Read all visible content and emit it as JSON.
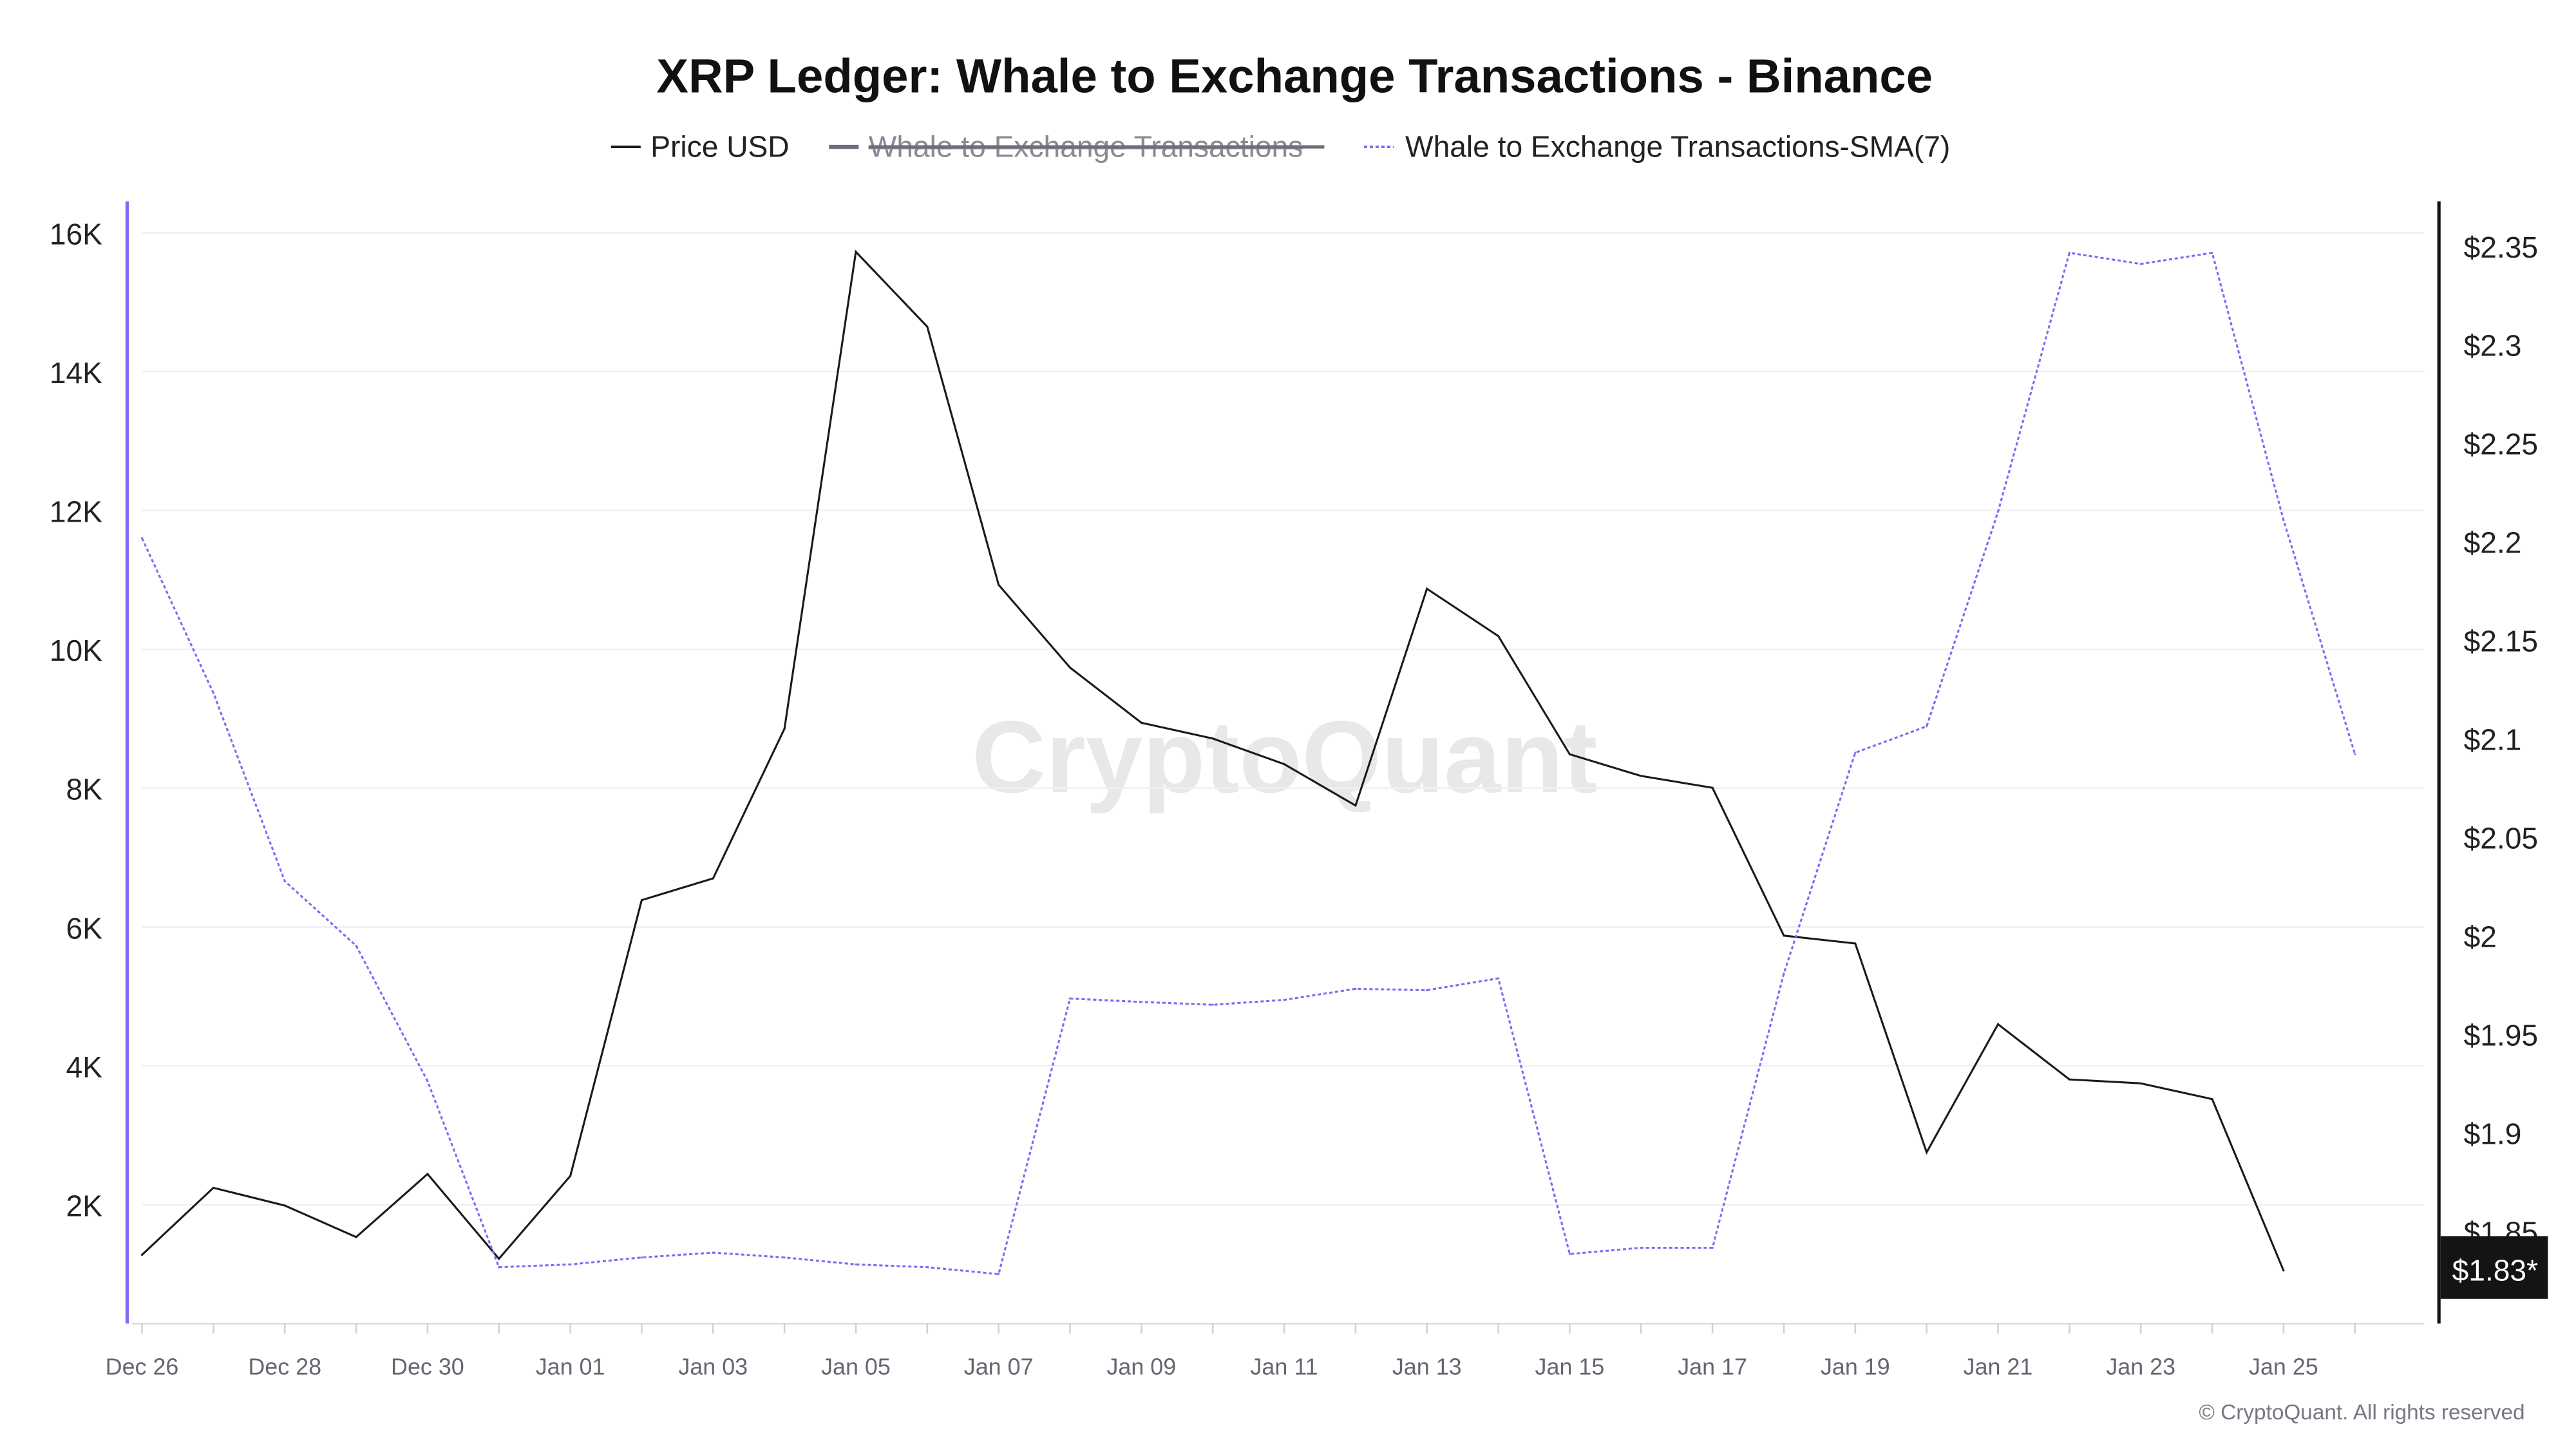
{
  "chart_data": {
    "type": "line",
    "title": "XRP Ledger: Whale to Exchange Transactions - Binance",
    "legend": {
      "placement": "top-center",
      "items": [
        {
          "label": "Price USD",
          "color": "#1a1a1a",
          "style": "solid",
          "hidden": false
        },
        {
          "label": "Whale to Exchange Transactions",
          "color": "#6e6e7a",
          "style": "solid",
          "hidden": true
        },
        {
          "label": "Whale to Exchange Transactions-SMA(7)",
          "color": "#7b6cf6",
          "style": "dotted",
          "hidden": false
        }
      ]
    },
    "x": [
      "Dec 26",
      "Dec 27",
      "Dec 28",
      "Dec 29",
      "Dec 30",
      "Dec 31",
      "Jan 01",
      "Jan 02",
      "Jan 03",
      "Jan 04",
      "Jan 05",
      "Jan 06",
      "Jan 07",
      "Jan 08",
      "Jan 09",
      "Jan 10",
      "Jan 11",
      "Jan 12",
      "Jan 13",
      "Jan 14",
      "Jan 15",
      "Jan 16",
      "Jan 17",
      "Jan 18",
      "Jan 19",
      "Jan 20",
      "Jan 21",
      "Jan 22",
      "Jan 23",
      "Jan 24",
      "Jan 25",
      "Jan 26"
    ],
    "x_tick_labels": [
      "Dec 26",
      "Dec 28",
      "Dec 30",
      "Jan 01",
      "Jan 03",
      "Jan 05",
      "Jan 07",
      "Jan 09",
      "Jan 11",
      "Jan 13",
      "Jan 15",
      "Jan 17",
      "Jan 19",
      "Jan 21",
      "Jan 23",
      "Jan 25"
    ],
    "left_axis": {
      "ticks": [
        "2K",
        "4K",
        "6K",
        "8K",
        "10K",
        "12K",
        "14K",
        "16K"
      ],
      "tick_values": [
        2000,
        4000,
        6000,
        8000,
        10000,
        12000,
        14000,
        16000
      ],
      "range": [
        0,
        16500
      ],
      "color": "#7b6cf6"
    },
    "right_axis": {
      "ticks": [
        "$1.85",
        "$1.9",
        "$1.95",
        "$2",
        "$2.05",
        "$2.1",
        "$2.15",
        "$2.2",
        "$2.25",
        "$2.3",
        "$2.35"
      ],
      "tick_values": [
        1.85,
        1.9,
        1.95,
        2.0,
        2.05,
        2.1,
        2.15,
        2.2,
        2.25,
        2.3,
        2.35
      ],
      "color": "#1a1a1a"
    },
    "grid": true,
    "series": [
      {
        "name": "Price USD",
        "axis": "right",
        "color": "#1a1a1a",
        "values": [
          1.838,
          1.872,
          1.863,
          1.847,
          1.879,
          1.836,
          1.878,
          2.018,
          2.029,
          2.105,
          2.347,
          2.309,
          2.178,
          2.136,
          2.108,
          2.1,
          2.087,
          2.066,
          2.176,
          2.152,
          2.092,
          2.081,
          2.075,
          2.0,
          1.996,
          1.89,
          1.955,
          1.927,
          1.925,
          1.917,
          1.83,
          null
        ]
      },
      {
        "name": "Whale to Exchange Transactions-SMA(7)",
        "axis": "left",
        "color": "#7b6cf6",
        "values": [
          11600,
          9370,
          6660,
          5730,
          3780,
          1100,
          1140,
          1240,
          1310,
          1240,
          1140,
          1100,
          1000,
          4970,
          4920,
          4880,
          4950,
          5110,
          5090,
          5260,
          1290,
          1380,
          1380,
          5330,
          8510,
          8890,
          11980,
          15710,
          15550,
          15710,
          11860,
          8490
        ]
      }
    ],
    "last_price_label": "$1.83*",
    "watermark": "CryptoQuant",
    "copyright": "© CryptoQuant. All rights reserved"
  }
}
